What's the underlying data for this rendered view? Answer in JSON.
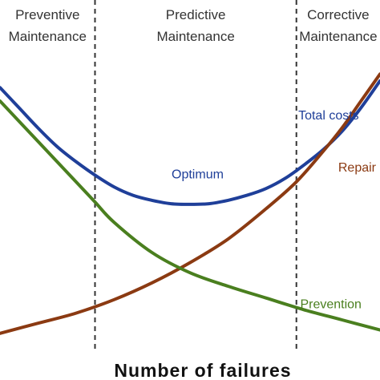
{
  "chart_data": {
    "type": "line",
    "title": "",
    "xlabel": "Number of failures",
    "ylabel": "",
    "xlim": [
      0,
      100
    ],
    "ylim": [
      0,
      100
    ],
    "grid": false,
    "regions": [
      {
        "label_line1": "Preventive",
        "label_line2": "Maintenance",
        "x_start": 0,
        "x_end": 25
      },
      {
        "label_line1": "Predictive",
        "label_line2": "Maintenance",
        "x_start": 25,
        "x_end": 78
      },
      {
        "label_line1": "Corrective",
        "label_line2": "Maintenance",
        "x_start": 78,
        "x_end": 100
      }
    ],
    "dividers": [
      25,
      78
    ],
    "series": [
      {
        "name": "Total costs",
        "color": "#1f3f99",
        "x": [
          0,
          5,
          10,
          15,
          20,
          25,
          30,
          35,
          40,
          45,
          50,
          55,
          60,
          65,
          70,
          75,
          80,
          85,
          90,
          95,
          100
        ],
        "y": [
          74,
          68,
          62,
          56.5,
          52,
          48,
          44.5,
          42,
          40.5,
          39.5,
          39.3,
          39.5,
          40.5,
          42,
          44,
          47,
          51,
          55.5,
          61,
          68,
          76
        ]
      },
      {
        "name": "Repair",
        "color": "#8b3a12",
        "x": [
          0,
          10,
          20,
          30,
          40,
          50,
          60,
          70,
          78,
          85,
          90,
          95,
          100
        ],
        "y": [
          1,
          4,
          7,
          11,
          16,
          22,
          29,
          38,
          46,
          55,
          62,
          70,
          78
        ]
      },
      {
        "name": "Prevention",
        "color": "#4a7f1f",
        "x": [
          0,
          10,
          20,
          25,
          30,
          40,
          50,
          60,
          70,
          80,
          90,
          100
        ],
        "y": [
          70,
          58,
          46,
          40,
          34,
          25,
          19,
          15,
          11.5,
          8,
          5,
          2
        ]
      }
    ],
    "annotations": [
      {
        "text": "Total costs",
        "x": 78.5,
        "y": 64.5,
        "color": "#1f3f99"
      },
      {
        "text": "Optimum",
        "x": 52,
        "y": 47,
        "color": "#1f3f99"
      },
      {
        "text": "Repair",
        "x": 89,
        "y": 49,
        "color": "#8b3a12"
      },
      {
        "text": "Prevention",
        "x": 79,
        "y": 8.5,
        "color": "#4a7f1f"
      }
    ]
  }
}
